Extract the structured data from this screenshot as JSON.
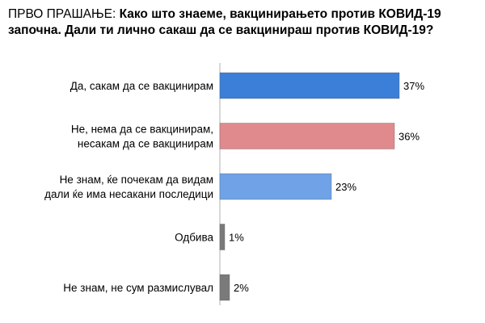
{
  "chart_data": {
    "type": "bar",
    "orientation": "horizontal",
    "title_lead": "ПРВО ПРАШАЊЕ:",
    "title_question_line1": "Како што знаеме, вакцинирањето против КОВИД-19",
    "title_question_line2": "започна. Дали ти лично сакаш да се вакцинираш против КОВИД-19?",
    "categories": [
      [
        "Да, сакам да се вакцинирам"
      ],
      [
        "Не, нема да се вакцинирам,",
        "несакам да се вакцинирам"
      ],
      [
        "Не знам, ќе почекам да видам",
        "дали ќе има несакани последици"
      ],
      [
        "Одбива"
      ],
      [
        "Не знам, не сум размислувал"
      ]
    ],
    "values": [
      37,
      36,
      23,
      1,
      2
    ],
    "value_labels": [
      "37%",
      "36%",
      "23%",
      "1%",
      "2%"
    ],
    "colors": [
      "#3b7fd9",
      "#e08a8e",
      "#6fa2e6",
      "#7a7a7a",
      "#7a7a7a"
    ],
    "xlim": [
      0,
      40
    ],
    "grid": false,
    "legend": "none"
  }
}
